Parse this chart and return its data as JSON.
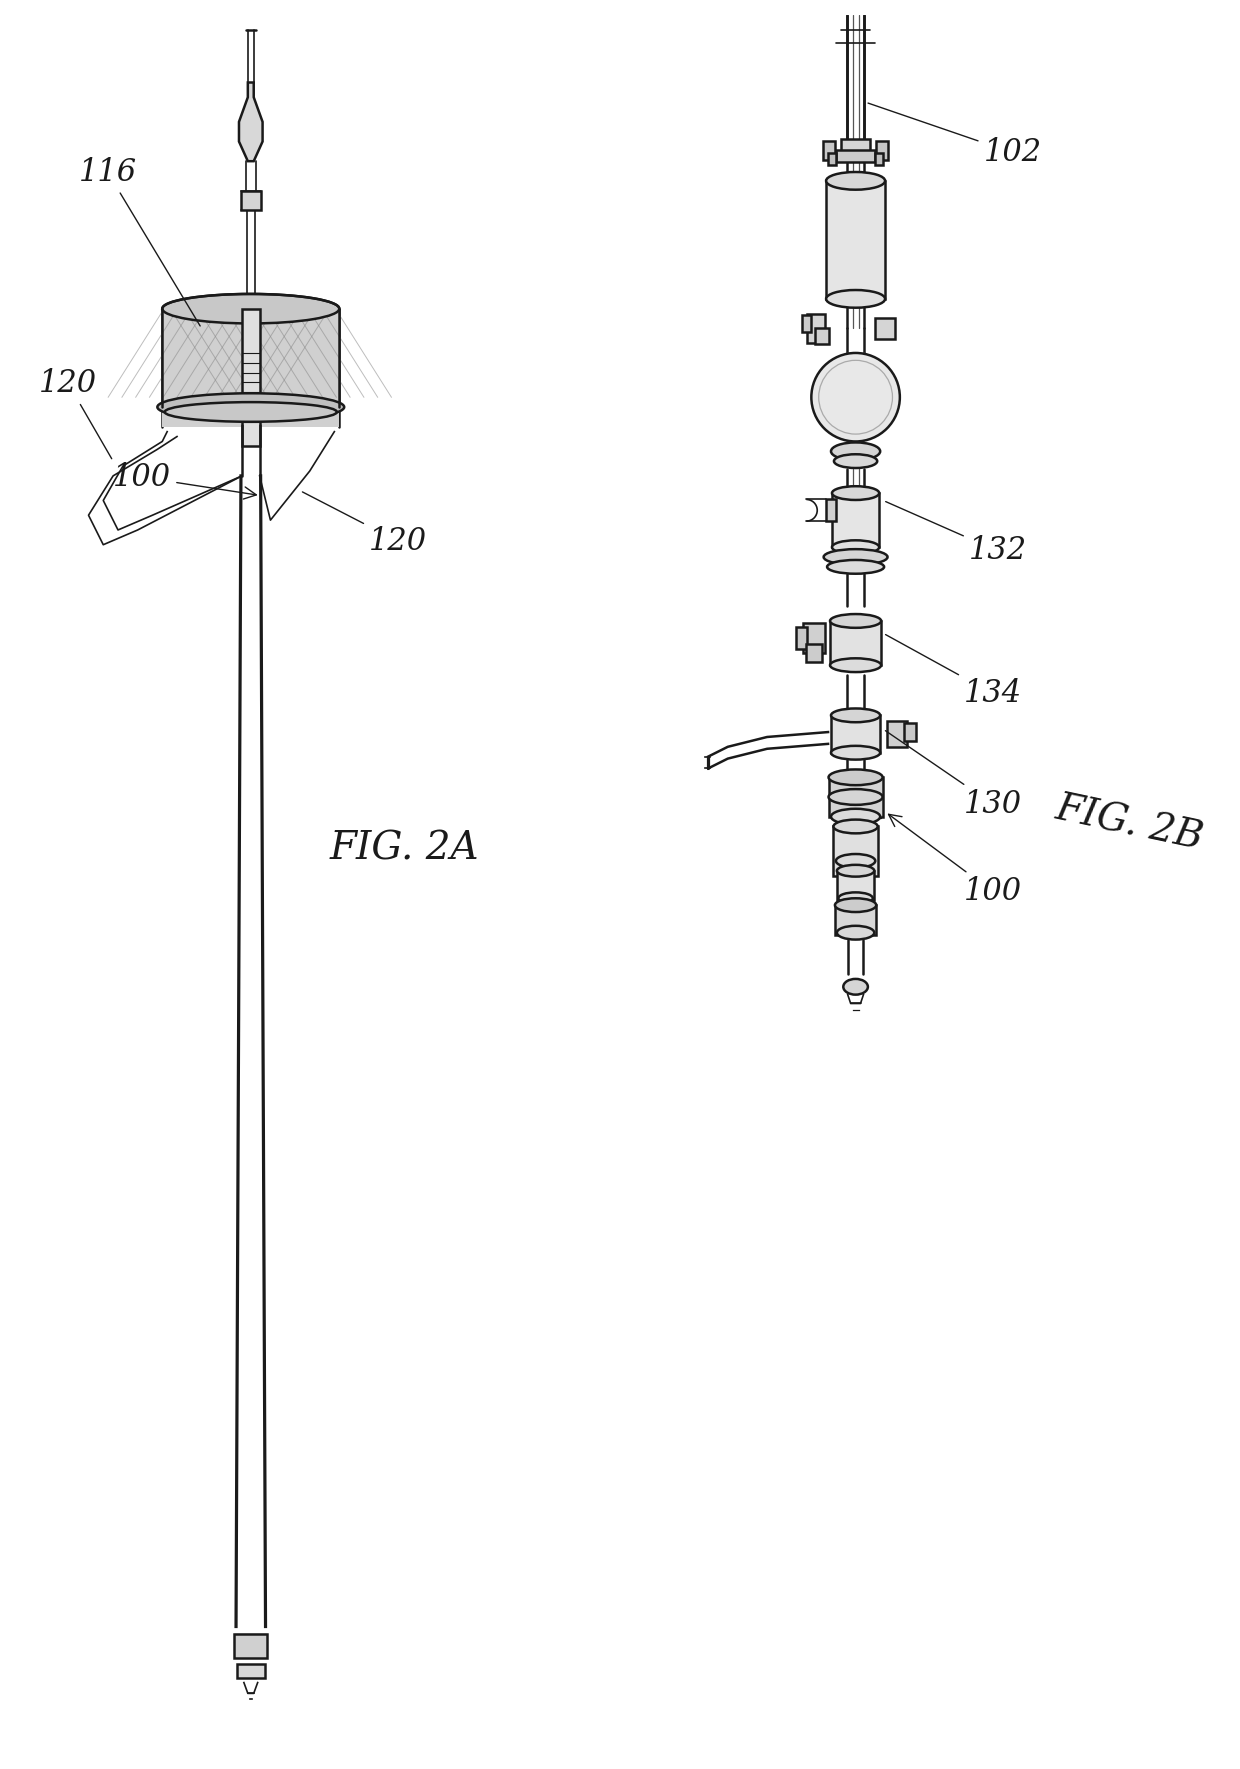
{
  "bg_color": "#ffffff",
  "lc": "#1a1a1a",
  "fig2a_label": "FIG. 2A",
  "fig2b_label": "FIG. 2B",
  "label_100_left": "100",
  "label_100_right": "100",
  "label_102": "102",
  "label_116": "116",
  "label_120a": "120",
  "label_120b": "120",
  "label_130": "130",
  "label_132": "132",
  "label_134": "134",
  "fc_light": "#e8e8e8",
  "fc_mid": "#d0d0d0",
  "fc_dark": "#b8b8b8",
  "mesh_color": "#888888"
}
